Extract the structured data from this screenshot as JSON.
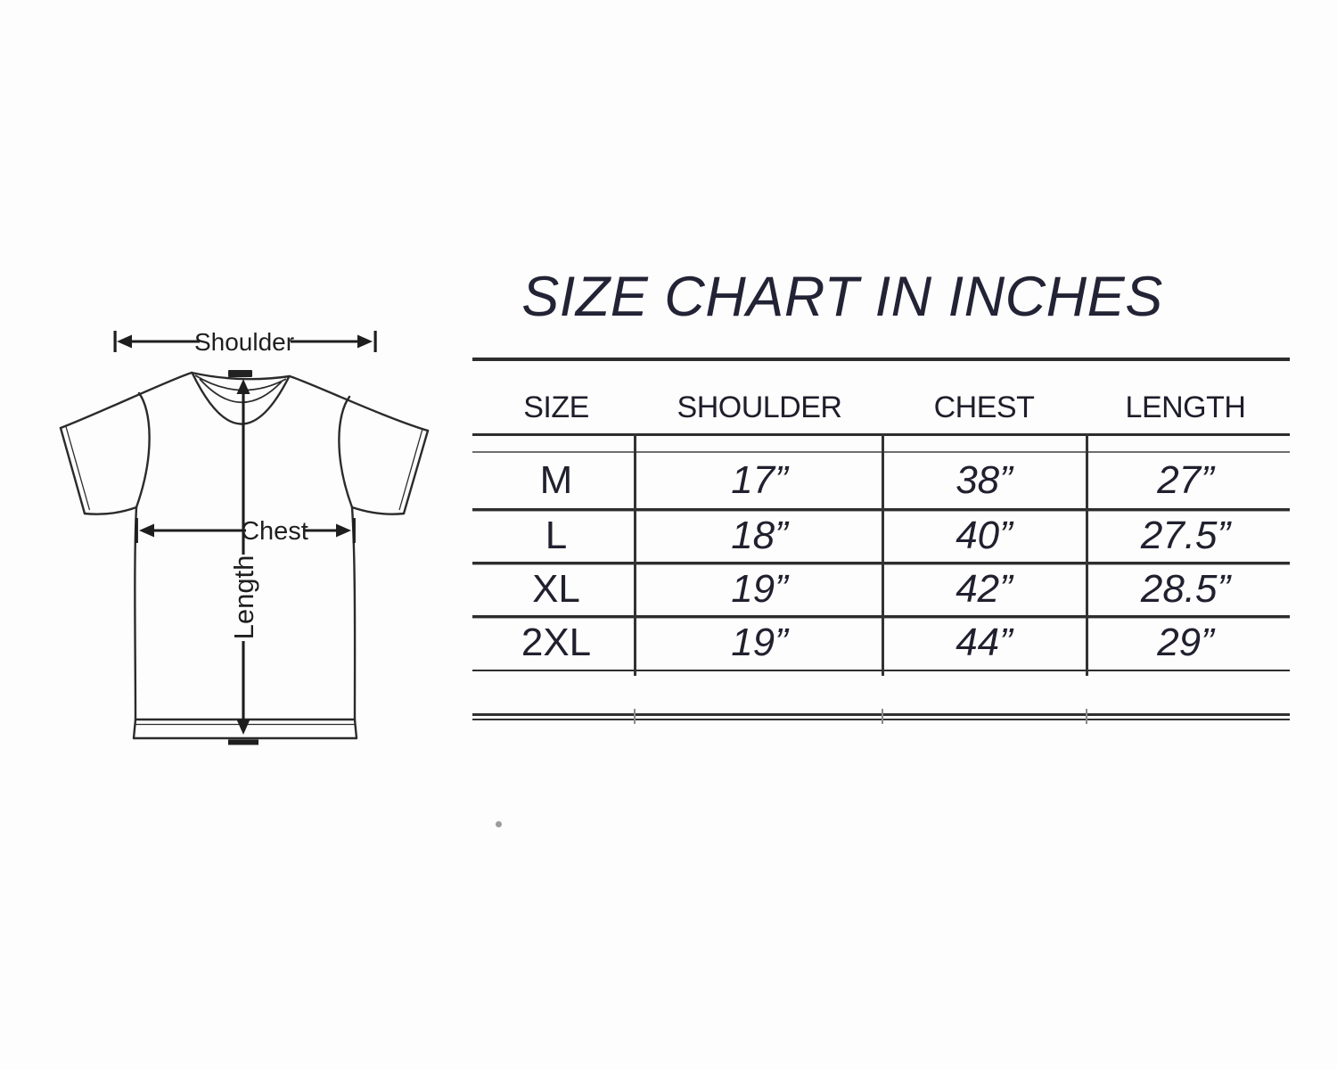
{
  "title": "SIZE CHART IN INCHES",
  "diagram": {
    "shoulder_label": "Shoulder",
    "chest_label": "Chest",
    "length_label": "Length"
  },
  "table": {
    "headers": [
      "SIZE",
      "SHOULDER",
      "CHEST",
      "LENGTH"
    ],
    "rows": [
      [
        "M",
        "17”",
        "38”",
        "27”"
      ],
      [
        "L",
        "18”",
        "40”",
        "27.5”"
      ],
      [
        "XL",
        "19”",
        "42”",
        "28.5”"
      ],
      [
        "2XL",
        "19”",
        "44”",
        "29”"
      ]
    ]
  },
  "chart_data": {
    "type": "table",
    "title": "SIZE CHART IN INCHES",
    "columns": [
      "SIZE",
      "SHOULDER",
      "CHEST",
      "LENGTH"
    ],
    "unit": "inches",
    "rows": [
      {
        "size": "M",
        "shoulder": 17,
        "chest": 38,
        "length": 27
      },
      {
        "size": "L",
        "shoulder": 18,
        "chest": 40,
        "length": 27.5
      },
      {
        "size": "XL",
        "shoulder": 19,
        "chest": 42,
        "length": 28.5
      },
      {
        "size": "2XL",
        "shoulder": 19,
        "chest": 44,
        "length": 29
      }
    ]
  },
  "colors": {
    "text": "#232336",
    "table_line": "#2d2d2d",
    "drawing_line": "#2b2b2b",
    "background": "#fdfdfd"
  }
}
